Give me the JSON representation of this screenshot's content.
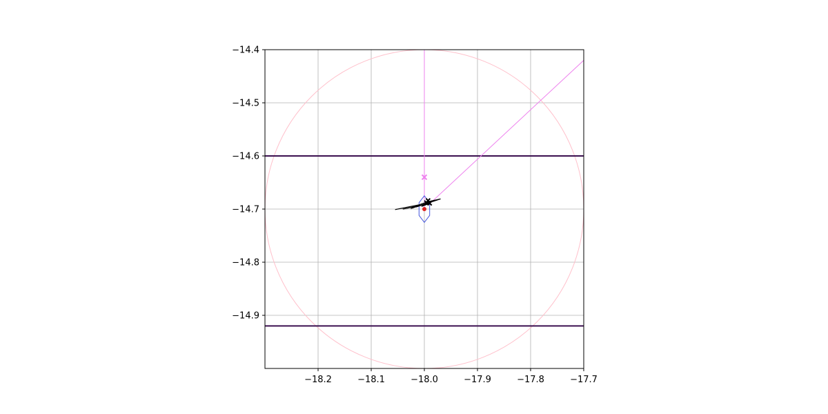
{
  "chart_data": {
    "type": "scatter",
    "title": "",
    "xlabel": "",
    "ylabel": "",
    "xlim": [
      -18.3,
      -17.7
    ],
    "ylim": [
      -15.0,
      -14.4
    ],
    "x_ticks": [
      -18.2,
      -18.1,
      -18.0,
      -17.9,
      -17.8,
      -17.7
    ],
    "x_tick_labels": [
      "−18.2",
      "−18.1",
      "−18.0",
      "−17.9",
      "−17.8",
      "−17.7"
    ],
    "y_ticks": [
      -14.4,
      -14.5,
      -14.6,
      -14.7,
      -14.8,
      -14.9
    ],
    "y_tick_labels": [
      "−14.4",
      "−14.5",
      "−14.6",
      "−14.7",
      "−14.8",
      "−14.9"
    ],
    "grid": true,
    "colors": {
      "grid": "#b0b0b0",
      "horizontal_lines": "#3b0f4f",
      "violet": "#ee82ee",
      "pink_circle": "#ffc0cb",
      "hexagon": "#4455dd",
      "path": "#000000",
      "red_marker": "#dd2222"
    },
    "horizontal_lines": [
      -14.6,
      -14.92
    ],
    "vertical_line": {
      "x": -18.0,
      "y_from": -14.4,
      "y_to": -14.7
    },
    "diagonal_line": {
      "x": [
        -17.99,
        -17.7
      ],
      "y": [
        -14.69,
        -14.42
      ]
    },
    "circle": {
      "cx": -18.0,
      "cy": -14.7,
      "r": 0.3
    },
    "hexagon": {
      "x": [
        -18.0,
        -17.99,
        -17.99,
        -18.0,
        -18.01,
        -18.01
      ],
      "y": [
        -14.675,
        -14.688,
        -14.712,
        -14.725,
        -14.712,
        -14.688
      ]
    },
    "x_marker": {
      "x": -18.0,
      "y": -14.64
    },
    "red_marker": {
      "x": -18.0,
      "y": -14.7
    },
    "black_path": {
      "x": [
        -18.055,
        -18.01,
        -17.993,
        -17.97,
        -18.015,
        -17.996,
        -18.025,
        -17.99,
        -18.005,
        -17.992,
        -18.04,
        -17.998
      ],
      "y": [
        -14.701,
        -14.692,
        -14.686,
        -14.681,
        -14.696,
        -14.689,
        -14.699,
        -14.687,
        -14.695,
        -14.69,
        -14.7,
        -14.691
      ]
    },
    "black_markers": {
      "x": [
        -17.993,
        -17.99,
        -17.996
      ],
      "y": [
        -14.684,
        -14.689,
        -14.688
      ]
    }
  }
}
